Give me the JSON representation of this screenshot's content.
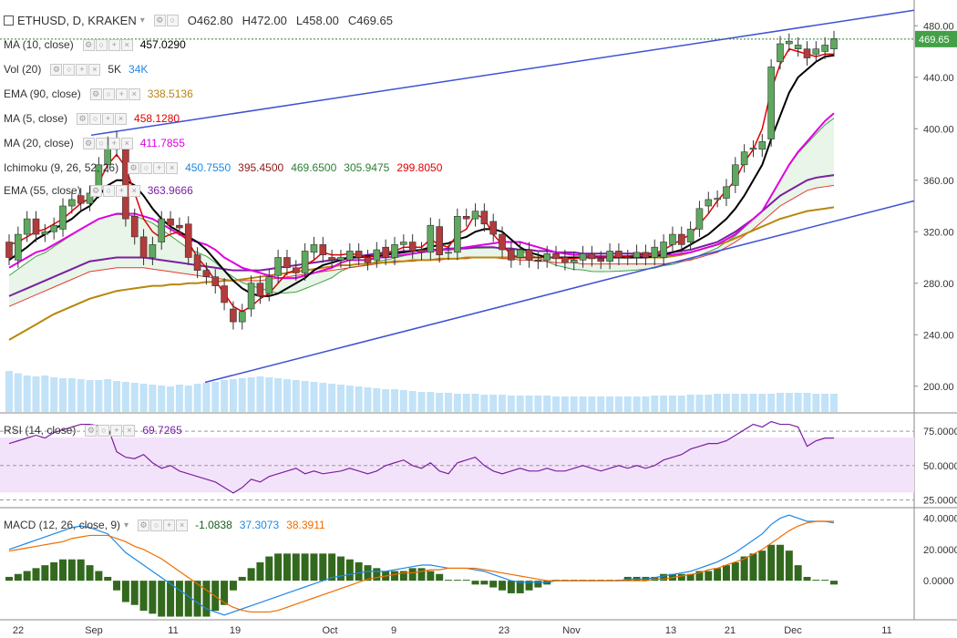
{
  "header": {
    "symbol": "ETHUSD, D, KRAKEN",
    "open": "O462.80",
    "high": "H472.00",
    "low": "L458.00",
    "close": "C469.65"
  },
  "indicators": [
    {
      "key": "ma10",
      "label": "MA (10, close)",
      "values": [
        "457.0290"
      ],
      "colors": [
        "#000000"
      ]
    },
    {
      "key": "vol",
      "label": "Vol (20)",
      "values": [
        "5K",
        "34K"
      ],
      "colors": [
        "#333333",
        "#1e88e5"
      ]
    },
    {
      "key": "ema90",
      "label": "EMA (90, close)",
      "values": [
        "338.5136"
      ],
      "colors": [
        "#b8860b"
      ]
    },
    {
      "key": "ma5",
      "label": "MA (5, close)",
      "values": [
        "458.1280"
      ],
      "colors": [
        "#e00000"
      ]
    },
    {
      "key": "ma20",
      "label": "MA (20, close)",
      "values": [
        "411.7855"
      ],
      "colors": [
        "#e000e0"
      ]
    },
    {
      "key": "ichimoku",
      "label": "Ichimoku (9, 26, 52, 26)",
      "values": [
        "450.7550",
        "395.4500",
        "469.6500",
        "305.9475",
        "299.8050"
      ],
      "colors": [
        "#1e88e5",
        "#8b1a1a",
        "#2e7d32",
        "#2e7d32",
        "#e00000"
      ]
    },
    {
      "key": "ema55",
      "label": "EMA (55, close)",
      "values": [
        "363.9666"
      ],
      "colors": [
        "#7b1fa2"
      ]
    }
  ],
  "rsi_legend": {
    "label": "RSI (14, close)",
    "value": "69.7265",
    "color": "#7b1fa2"
  },
  "macd_legend": {
    "label": "MACD (12, 26, close, 9)",
    "values": [
      "-1.0838",
      "37.3073",
      "38.3911"
    ],
    "colors": [
      "#1b5e20",
      "#1e88e5",
      "#ef6c00"
    ]
  },
  "price_badge": "469.65",
  "chart_data": {
    "type": "line",
    "title": "ETHUSD, D, KRAKEN",
    "x_tick_labels": [
      "22",
      "Sep",
      "11",
      "19",
      "Oct",
      "9",
      "23",
      "Nov",
      "13",
      "21",
      "Dec",
      "11"
    ],
    "price_axis": {
      "ticks": [
        "480.00",
        "440.00",
        "400.00",
        "360.00",
        "320.00",
        "280.00",
        "240.00",
        "200.00"
      ],
      "range": [
        180,
        500
      ]
    },
    "rsi_axis": {
      "ticks": [
        "75.0000",
        "50.0000",
        "25.0000"
      ],
      "range": [
        20,
        85
      ]
    },
    "macd_axis": {
      "ticks": [
        "40.0000",
        "20.0000",
        "0.0000"
      ],
      "range": [
        -25,
        45
      ]
    },
    "close": [
      300,
      318,
      330,
      318,
      320,
      325,
      340,
      345,
      342,
      350,
      372,
      388,
      384,
      330,
      316,
      300,
      310,
      330,
      325,
      323,
      300,
      290,
      285,
      278,
      265,
      250,
      258,
      280,
      270,
      285,
      300,
      292,
      288,
      305,
      310,
      302,
      298,
      300,
      305,
      300,
      296,
      306,
      300,
      310,
      312,
      305,
      304,
      325,
      302,
      304,
      332,
      330,
      336,
      326,
      318,
      306,
      298,
      306,
      298,
      297,
      303,
      299,
      296,
      298,
      303,
      299,
      297,
      305,
      300,
      300,
      304,
      300,
      308,
      312,
      318,
      310,
      322,
      338,
      345,
      346,
      355,
      372,
      382,
      385,
      390,
      448,
      466,
      468,
      465,
      455,
      462,
      465,
      470
    ],
    "open": [
      312,
      298,
      318,
      330,
      318,
      320,
      322,
      340,
      348,
      342,
      352,
      372,
      392,
      384,
      332,
      316,
      300,
      312,
      330,
      325,
      326,
      302,
      290,
      285,
      278,
      260,
      250,
      260,
      280,
      272,
      286,
      300,
      292,
      288,
      304,
      310,
      300,
      298,
      298,
      305,
      300,
      298,
      308,
      300,
      310,
      312,
      306,
      304,
      324,
      304,
      304,
      332,
      330,
      336,
      328,
      318,
      306,
      300,
      306,
      298,
      298,
      303,
      300,
      296,
      298,
      303,
      299,
      297,
      305,
      300,
      300,
      304,
      300,
      300,
      310,
      318,
      312,
      322,
      340,
      345,
      346,
      356,
      372,
      384,
      384,
      392,
      452,
      466,
      462,
      462,
      458,
      460,
      462
    ],
    "ma5": [
      310,
      312,
      316,
      320,
      322,
      326,
      330,
      336,
      342,
      346,
      358,
      372,
      380,
      370,
      350,
      330,
      320,
      315,
      318,
      320,
      312,
      300,
      292,
      282,
      272,
      262,
      258,
      262,
      268,
      272,
      280,
      288,
      290,
      294,
      298,
      304,
      302,
      302,
      303,
      302,
      300,
      302,
      304,
      305,
      308,
      308,
      308,
      314,
      310,
      308,
      318,
      322,
      334,
      330,
      318,
      310,
      302,
      300,
      300,
      300,
      300,
      300,
      299,
      299,
      300,
      300,
      300,
      300,
      301,
      301,
      302,
      302,
      303,
      306,
      310,
      314,
      318,
      326,
      334,
      344,
      352,
      360,
      374,
      384,
      400,
      430,
      450,
      462,
      460,
      458,
      456,
      458,
      458
    ],
    "ma10": [
      298,
      303,
      308,
      314,
      318,
      322,
      326,
      330,
      336,
      340,
      348,
      356,
      360,
      360,
      356,
      348,
      338,
      330,
      324,
      320,
      316,
      312,
      306,
      298,
      290,
      282,
      276,
      272,
      270,
      270,
      272,
      276,
      280,
      284,
      290,
      294,
      296,
      298,
      300,
      300,
      301,
      301,
      302,
      303,
      304,
      305,
      306,
      308,
      310,
      311,
      314,
      316,
      320,
      322,
      322,
      320,
      314,
      308,
      304,
      302,
      300,
      300,
      300,
      300,
      300,
      300,
      300,
      300,
      300,
      300,
      300,
      300,
      301,
      302,
      304,
      306,
      310,
      314,
      318,
      324,
      330,
      338,
      348,
      360,
      372,
      392,
      410,
      428,
      440,
      446,
      452,
      456,
      457
    ],
    "ma20": [
      292,
      296,
      300,
      304,
      306,
      310,
      314,
      318,
      322,
      326,
      330,
      332,
      334,
      334,
      334,
      332,
      330,
      326,
      322,
      318,
      314,
      312,
      310,
      306,
      300,
      296,
      292,
      290,
      288,
      286,
      284,
      284,
      284,
      286,
      288,
      290,
      292,
      296,
      298,
      298,
      298,
      300,
      300,
      301,
      302,
      303,
      304,
      305,
      306,
      306,
      307,
      308,
      309,
      310,
      311,
      312,
      312,
      312,
      310,
      308,
      306,
      304,
      303,
      302,
      302,
      301,
      301,
      301,
      301,
      301,
      301,
      301,
      301,
      302,
      302,
      303,
      304,
      306,
      308,
      310,
      314,
      318,
      324,
      330,
      336,
      348,
      360,
      372,
      382,
      390,
      398,
      406,
      412
    ],
    "ema55": [
      270,
      273,
      276,
      279,
      282,
      285,
      288,
      291,
      294,
      297,
      298,
      299,
      300,
      300,
      300,
      300,
      299,
      298,
      297,
      296,
      295,
      294,
      293,
      292,
      291,
      290,
      290,
      290,
      290,
      291,
      292,
      293,
      294,
      295,
      296,
      297,
      298,
      299,
      300,
      301,
      302,
      303,
      304,
      304,
      305,
      305,
      306,
      306,
      306,
      307,
      307,
      307,
      308,
      308,
      308,
      307,
      307,
      306,
      306,
      305,
      305,
      304,
      304,
      304,
      303,
      303,
      303,
      303,
      303,
      303,
      303,
      303,
      303,
      303,
      304,
      305,
      306,
      308,
      310,
      312,
      316,
      320,
      325,
      330,
      336,
      342,
      348,
      352,
      356,
      360,
      362,
      363,
      364
    ],
    "ema90": [
      236,
      240,
      244,
      248,
      252,
      256,
      259,
      262,
      265,
      268,
      270,
      272,
      274,
      275,
      276,
      277,
      278,
      278,
      279,
      279,
      280,
      280,
      281,
      281,
      282,
      282,
      283,
      284,
      285,
      286,
      287,
      288,
      289,
      290,
      291,
      292,
      293,
      294,
      294,
      295,
      295,
      296,
      296,
      297,
      297,
      298,
      298,
      298,
      299,
      299,
      299,
      300,
      300,
      300,
      300,
      300,
      300,
      300,
      300,
      300,
      300,
      300,
      300,
      300,
      300,
      300,
      300,
      300,
      300,
      300,
      300,
      300,
      300,
      300,
      301,
      302,
      304,
      306,
      308,
      310,
      312,
      315,
      318,
      321,
      324,
      327,
      330,
      332,
      334,
      336,
      337,
      338,
      339
    ],
    "rsi": [
      66,
      68,
      70,
      72,
      70,
      74,
      76,
      78,
      80,
      80,
      79,
      78,
      60,
      56,
      55,
      58,
      52,
      48,
      50,
      46,
      44,
      42,
      40,
      38,
      34,
      30,
      34,
      40,
      38,
      42,
      44,
      46,
      48,
      44,
      46,
      44,
      45,
      46,
      48,
      46,
      44,
      46,
      50,
      52,
      54,
      50,
      48,
      52,
      46,
      44,
      52,
      54,
      56,
      50,
      46,
      44,
      46,
      48,
      46,
      46,
      48,
      46,
      46,
      48,
      50,
      48,
      46,
      48,
      50,
      48,
      50,
      48,
      50,
      54,
      56,
      58,
      62,
      64,
      66,
      66,
      68,
      72,
      76,
      80,
      78,
      82,
      80,
      80,
      78,
      64,
      68,
      70,
      70
    ],
    "macd": [
      20,
      22,
      24,
      26,
      28,
      30,
      32,
      34,
      35,
      34,
      32,
      30,
      24,
      18,
      14,
      10,
      6,
      2,
      -2,
      -6,
      -10,
      -14,
      -18,
      -20,
      -22,
      -20,
      -18,
      -16,
      -14,
      -12,
      -10,
      -8,
      -6,
      -4,
      -2,
      0,
      2,
      3,
      4,
      5,
      6,
      6,
      6,
      7,
      8,
      9,
      10,
      10,
      9,
      8,
      8,
      8,
      7,
      6,
      4,
      2,
      0,
      -1,
      -1,
      -1,
      -1,
      0,
      0,
      0,
      0,
      0,
      0,
      0,
      0,
      1,
      1,
      1,
      2,
      3,
      4,
      5,
      6,
      8,
      10,
      12,
      15,
      18,
      22,
      26,
      30,
      36,
      40,
      42,
      40,
      38,
      38,
      38,
      37
    ],
    "signal": [
      19,
      20,
      21,
      22,
      23,
      24,
      25,
      27,
      28,
      29,
      29,
      29,
      27,
      25,
      22,
      20,
      17,
      14,
      10,
      6,
      2,
      -2,
      -6,
      -10,
      -14,
      -17,
      -19,
      -20,
      -20,
      -20,
      -19,
      -17,
      -15,
      -13,
      -11,
      -9,
      -7,
      -5,
      -3,
      -1,
      1,
      2,
      3,
      4,
      5,
      5,
      6,
      7,
      7,
      8,
      8,
      8,
      8,
      7,
      6,
      5,
      4,
      3,
      2,
      1,
      0,
      0,
      0,
      0,
      0,
      0,
      0,
      0,
      0,
      0,
      0,
      0,
      1,
      1,
      2,
      3,
      4,
      5,
      7,
      8,
      10,
      12,
      14,
      17,
      20,
      24,
      28,
      32,
      35,
      37,
      38,
      38,
      38
    ],
    "volume": [
      90,
      85,
      80,
      78,
      80,
      76,
      74,
      74,
      72,
      70,
      70,
      72,
      68,
      66,
      64,
      62,
      60,
      58,
      56,
      60,
      58,
      62,
      64,
      66,
      70,
      72,
      74,
      76,
      78,
      76,
      74,
      72,
      70,
      68,
      66,
      64,
      62,
      60,
      58,
      56,
      54,
      52,
      50,
      50,
      48,
      46,
      44,
      44,
      42,
      42,
      40,
      40,
      40,
      38,
      38,
      38,
      36,
      36,
      36,
      36,
      36,
      34,
      34,
      34,
      34,
      34,
      34,
      34,
      34,
      34,
      34,
      34,
      36,
      36,
      36,
      36,
      38,
      38,
      38,
      40,
      40,
      40,
      40,
      40,
      40,
      40,
      42,
      42,
      42,
      42,
      40,
      40,
      40
    ]
  }
}
